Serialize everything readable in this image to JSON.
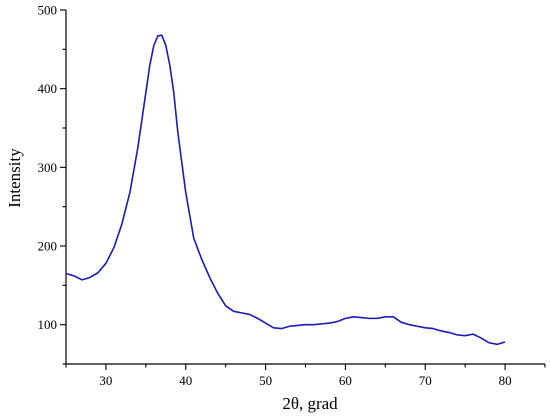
{
  "chart_data": {
    "type": "line",
    "xlabel": "2θ, grad",
    "ylabel": "Intensity",
    "xlim": [
      25,
      85
    ],
    "ylim": [
      50,
      500
    ],
    "xticks": [
      30,
      40,
      50,
      60,
      70,
      80
    ],
    "yticks": [
      100,
      200,
      300,
      400,
      500
    ],
    "x_minor_step": 5,
    "y_minor_step": 50,
    "grid": false,
    "colors": {
      "series": "#1a1ab8",
      "axis": "#000000"
    },
    "series": [
      {
        "x": [
          25,
          26,
          27,
          28,
          29,
          30,
          31,
          32,
          33,
          34,
          35,
          35.5,
          36,
          36.5,
          37,
          37.5,
          38,
          38.5,
          39,
          40,
          41,
          42,
          43,
          44,
          45,
          46,
          47,
          48,
          49,
          50,
          51,
          52,
          53,
          54,
          55,
          56,
          57,
          58,
          59,
          60,
          61,
          62,
          63,
          64,
          65,
          66,
          67,
          68,
          69,
          70,
          71,
          72,
          73,
          74,
          75,
          76,
          77,
          78,
          79,
          80
        ],
        "y": [
          165,
          162,
          157,
          160,
          166,
          178,
          198,
          228,
          268,
          325,
          395,
          430,
          455,
          467,
          468,
          455,
          430,
          395,
          345,
          268,
          210,
          183,
          160,
          140,
          124,
          117,
          115,
          113,
          108,
          102,
          96,
          95,
          98,
          99,
          100,
          100,
          101,
          102,
          104,
          108,
          110,
          109,
          108,
          108,
          110,
          110,
          103,
          100,
          98,
          96,
          95,
          92,
          90,
          87,
          86,
          88,
          83,
          77,
          75,
          78
        ]
      }
    ]
  }
}
